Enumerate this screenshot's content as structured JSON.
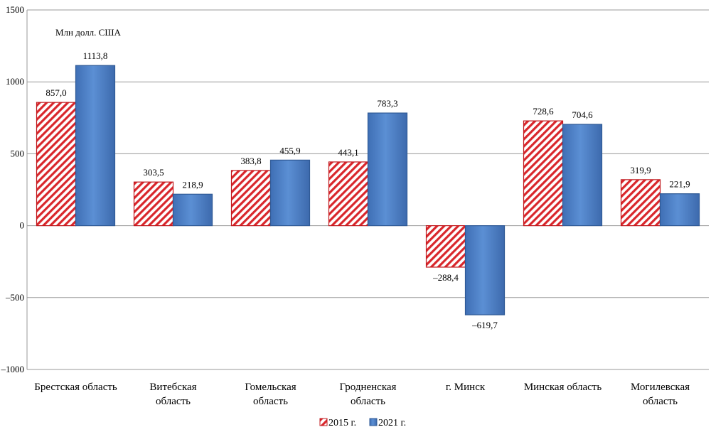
{
  "chart_data": {
    "type": "bar",
    "unit_label": "Млн долл. США",
    "ylim": [
      -1000,
      1500
    ],
    "yticks": [
      -1000,
      -500,
      0,
      500,
      1000,
      1500
    ],
    "ytick_labels": [
      "–1000",
      "–500",
      "0",
      "500",
      "1000",
      "1500"
    ],
    "grid": true,
    "legend_position": "bottom",
    "categories": [
      [
        "Брестская область"
      ],
      [
        "Витебская",
        "область"
      ],
      [
        "Гомельская",
        "область"
      ],
      [
        "Гродненская",
        "область"
      ],
      [
        "г. Минск"
      ],
      [
        "Минская область"
      ],
      [
        "Могилевская",
        "область"
      ]
    ],
    "series": [
      {
        "name": "2015 г.",
        "values": [
          857.0,
          303.5,
          383.8,
          443.1,
          -288.4,
          728.6,
          319.9
        ],
        "labels": [
          "857,0",
          "303,5",
          "383,8",
          "443,1",
          "–288,4",
          "728,6",
          "319,9"
        ],
        "color": "#d9262b",
        "pattern": "hatch"
      },
      {
        "name": "2021 г.",
        "values": [
          1113.8,
          218.9,
          455.9,
          783.3,
          -619.7,
          704.6,
          221.9
        ],
        "labels": [
          "1113,8",
          "218,9",
          "455,9",
          "783,3",
          "–619,7",
          "704,6",
          "221,9"
        ],
        "color": "#4f81c7",
        "pattern": "gradient"
      }
    ]
  }
}
